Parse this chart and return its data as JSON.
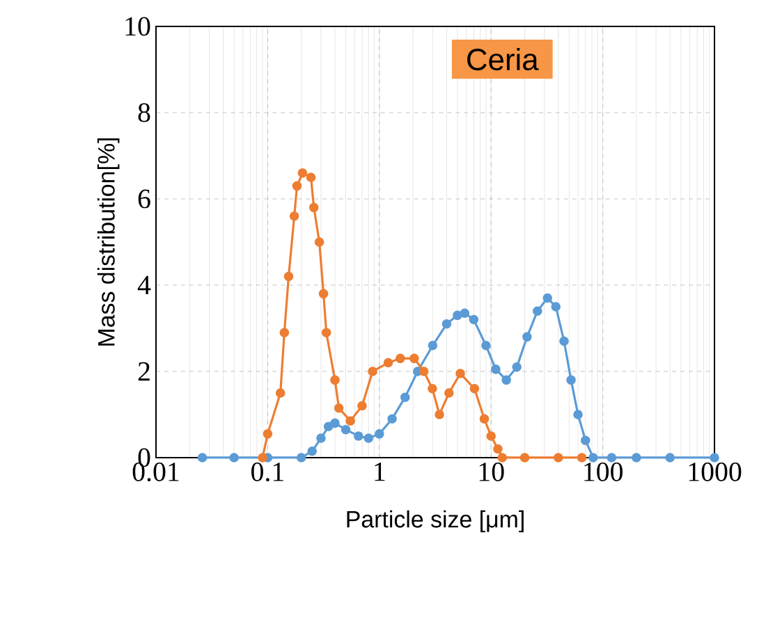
{
  "chart_data": {
    "type": "line",
    "xlabel": "Particle size [μm]",
    "ylabel": "Mass distribution[%]",
    "annotations": [
      "Ceria"
    ],
    "log": "x",
    "xlim": [
      0.01,
      1000
    ],
    "xticks": [
      0.01,
      0.1,
      1,
      10,
      100,
      1000
    ],
    "ylim": [
      0,
      10
    ],
    "yticks": [
      0,
      2,
      4,
      6,
      8,
      10
    ],
    "grid": true,
    "marker": "circle",
    "line_style": "solid",
    "series": [
      {
        "color": "#5b9bd5",
        "x": [
          0.026,
          0.05,
          0.1,
          0.2,
          0.25,
          0.3,
          0.35,
          0.4,
          0.5,
          0.65,
          0.8,
          1.0,
          1.3,
          1.7,
          2.2,
          3,
          4,
          5,
          5.8,
          7,
          9,
          11,
          13.7,
          17,
          21,
          26,
          32,
          38,
          45,
          52,
          60,
          70,
          82,
          120,
          200,
          400,
          1000
        ],
        "values": [
          0,
          0,
          0,
          0,
          0.15,
          0.45,
          0.72,
          0.8,
          0.65,
          0.5,
          0.45,
          0.55,
          0.9,
          1.4,
          2.0,
          2.6,
          3.1,
          3.3,
          3.35,
          3.2,
          2.6,
          2.05,
          1.8,
          2.1,
          2.8,
          3.4,
          3.7,
          3.5,
          2.7,
          1.8,
          1.0,
          0.4,
          0,
          0,
          0,
          0,
          0
        ]
      },
      {
        "color": "#ed7d31",
        "x": [
          0.09,
          0.1,
          0.13,
          0.141,
          0.154,
          0.173,
          0.183,
          0.205,
          0.244,
          0.259,
          0.29,
          0.316,
          0.335,
          0.4,
          0.434,
          0.55,
          0.7,
          0.87,
          1.2,
          1.54,
          2.05,
          2.5,
          2.98,
          3.45,
          4.2,
          5.3,
          7.1,
          8.7,
          10,
          11.5,
          12.6,
          20,
          40,
          65
        ],
        "values": [
          0,
          0.55,
          1.5,
          2.9,
          4.2,
          5.6,
          6.3,
          6.6,
          6.5,
          5.8,
          5.0,
          3.8,
          2.9,
          1.8,
          1.15,
          0.85,
          1.2,
          2.0,
          2.2,
          2.3,
          2.3,
          2.0,
          1.6,
          1.0,
          1.5,
          1.95,
          1.6,
          0.9,
          0.5,
          0.2,
          0,
          0,
          0,
          0
        ]
      }
    ]
  }
}
